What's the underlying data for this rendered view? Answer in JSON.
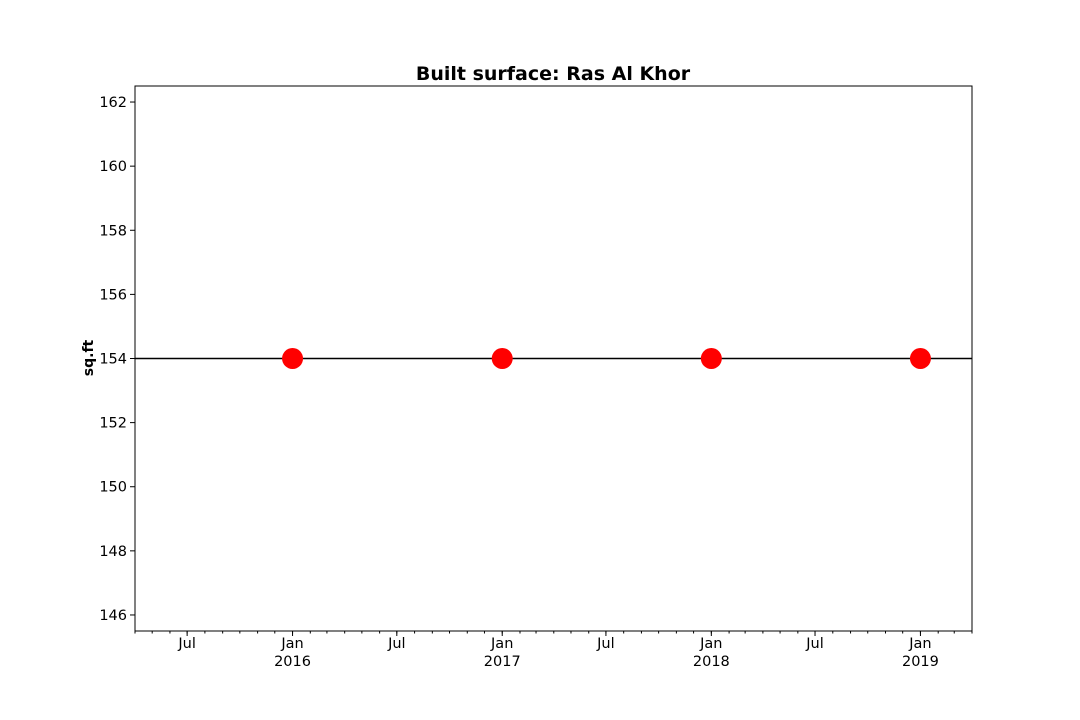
{
  "chart_data": {
    "type": "line",
    "title": "Built surface: Ras Al Khor",
    "xlabel": "",
    "ylabel": "sq.ft",
    "xlim": [
      "2015-04-01",
      "2019-04-01"
    ],
    "ylim": [
      145.5,
      162.5
    ],
    "y_ticks": [
      146,
      148,
      150,
      152,
      154,
      156,
      158,
      160,
      162
    ],
    "x_ticks": [
      {
        "date": "2015-07-01",
        "label": "Jul",
        "sublabel": ""
      },
      {
        "date": "2016-01-01",
        "label": "Jan",
        "sublabel": "2016"
      },
      {
        "date": "2016-07-01",
        "label": "Jul",
        "sublabel": ""
      },
      {
        "date": "2017-01-01",
        "label": "Jan",
        "sublabel": "2017"
      },
      {
        "date": "2017-07-01",
        "label": "Jul",
        "sublabel": ""
      },
      {
        "date": "2018-01-01",
        "label": "Jan",
        "sublabel": "2018"
      },
      {
        "date": "2018-07-01",
        "label": "Jul",
        "sublabel": ""
      },
      {
        "date": "2019-01-01",
        "label": "Jan",
        "sublabel": "2019"
      }
    ],
    "grid": false,
    "reference_line": {
      "y": 154,
      "color": "#000000"
    },
    "series": [
      {
        "color": "#ff0000",
        "marker": "circle",
        "x": [
          "2016-01-01",
          "2017-01-01",
          "2018-01-01",
          "2019-01-01"
        ],
        "y": [
          154,
          154,
          154,
          154
        ]
      }
    ]
  }
}
